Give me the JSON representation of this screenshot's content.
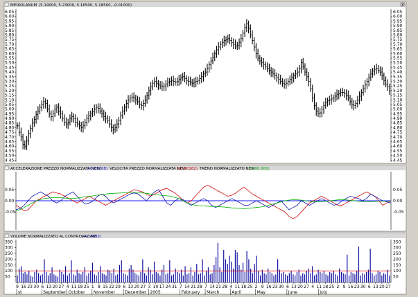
{
  "colors": {
    "price_bar": "#000000",
    "acc_line": "#d00000",
    "vel_line": "#1010b0",
    "trend_line": "#00b000",
    "zero_line": "#1a1aff",
    "volume_bar": "#1010a0",
    "volume_ref": "#e00000",
    "pane_bg": "#ffffff",
    "header_bg": "#d8d8d8"
  },
  "price_pane": {
    "title": "MEDIOLANUM",
    "ohlc": "(5.19000, 5.23000, 5.16500, 5.18500, -0.01000)",
    "close_icon": "close-icon"
  },
  "osc_pane": {
    "acc_label": "ACCELERAZIONE PREZZO NORMALIZZATA NEW",
    "acc_value": "(-0.01308)",
    "vel_label": "VELOCITA PREZZO NORMALIZZATA NEW",
    "vel_value": "(-0.00162)",
    "trend_label": "TREND NORMALIZZATO NEW",
    "trend_value": "(0.00.000)"
  },
  "vol_pane": {
    "label": "VOLUME NORMALIZZATO AL CONTROVALORE",
    "value": "(+7.4592)"
  },
  "x_axis": {
    "days": [
      "9",
      "16",
      "23",
      "30",
      "6",
      "13",
      "20",
      "27",
      "4",
      "11",
      "18",
      "25",
      "1",
      "8",
      "15",
      "22",
      "29",
      "6",
      "13",
      "20",
      "27",
      "3",
      "10",
      "17",
      "24",
      "31",
      "7",
      "14",
      "21",
      "28",
      "7",
      "14",
      "21",
      "28",
      "4",
      "11",
      "18",
      "25",
      "2",
      "9",
      "16",
      "23",
      "30",
      "6",
      "13",
      "20",
      "27",
      "4",
      "11",
      "18",
      "25",
      "2",
      "9",
      "16",
      "23",
      "30",
      "6",
      "13",
      "20",
      "27"
    ],
    "months": [
      "st",
      "September",
      "October",
      "November",
      "December",
      "2005",
      "February",
      "March",
      "April",
      "May",
      "June",
      "July"
    ]
  },
  "chart_data": [
    {
      "type": "ohlc",
      "title": "MEDIOLANUM",
      "ylim": [
        4.43,
        6.08
      ],
      "yticks": [
        "6.05",
        "6.00",
        "5.95",
        "5.90",
        "5.85",
        "5.80",
        "5.75",
        "5.70",
        "5.65",
        "5.60",
        "5.55",
        "5.50",
        "5.45",
        "5.40",
        "5.35",
        "5.30",
        "5.25",
        "5.20",
        "5.15",
        "5.10",
        "5.05",
        "5.00",
        "4.95",
        "4.90",
        "4.85",
        "4.80",
        "4.75",
        "4.70",
        "4.65",
        "4.60",
        "4.55",
        "4.50",
        "4.45"
      ],
      "close": [
        4.82,
        4.75,
        4.7,
        4.62,
        4.6,
        4.66,
        4.74,
        4.79,
        4.85,
        4.89,
        4.94,
        4.98,
        5.02,
        5.05,
        5.08,
        5.06,
        5.0,
        4.95,
        4.92,
        4.95,
        5.0,
        5.02,
        4.98,
        4.95,
        4.9,
        4.86,
        4.84,
        4.86,
        4.9,
        4.92,
        4.9,
        4.86,
        4.84,
        4.82,
        4.8,
        4.82,
        4.86,
        4.9,
        4.93,
        4.95,
        4.97,
        5.0,
        5.02,
        5.01,
        4.98,
        4.95,
        4.92,
        4.9,
        4.88,
        4.84,
        4.8,
        4.78,
        4.8,
        4.84,
        4.88,
        4.93,
        4.98,
        5.02,
        5.06,
        5.1,
        5.12,
        5.13,
        5.12,
        5.1,
        5.08,
        5.05,
        5.04,
        5.06,
        5.1,
        5.15,
        5.2,
        5.24,
        5.28,
        5.3,
        5.28,
        5.26,
        5.25,
        5.24,
        5.25,
        5.27,
        5.29,
        5.3,
        5.31,
        5.3,
        5.29,
        5.3,
        5.32,
        5.34,
        5.35,
        5.33,
        5.31,
        5.3,
        5.29,
        5.28,
        5.29,
        5.3,
        5.31,
        5.33,
        5.35,
        5.38,
        5.4,
        5.44,
        5.48,
        5.52,
        5.56,
        5.6,
        5.64,
        5.67,
        5.7,
        5.72,
        5.74,
        5.75,
        5.76,
        5.74,
        5.72,
        5.7,
        5.68,
        5.69,
        5.72,
        5.76,
        5.82,
        5.88,
        5.92,
        5.87,
        5.8,
        5.74,
        5.67,
        5.6,
        5.55,
        5.52,
        5.5,
        5.48,
        5.46,
        5.44,
        5.42,
        5.4,
        5.38,
        5.36,
        5.34,
        5.32,
        5.3,
        5.28,
        5.27,
        5.28,
        5.3,
        5.32,
        5.34,
        5.36,
        5.38,
        5.4,
        5.44,
        5.5,
        5.46,
        5.4,
        5.35,
        5.3,
        5.22,
        5.12,
        5.04,
        4.98,
        4.95,
        4.96,
        5.0,
        5.04,
        5.07,
        5.09,
        5.1,
        5.11,
        5.12,
        5.14,
        5.16,
        5.17,
        5.18,
        5.18,
        5.17,
        5.15,
        5.12,
        5.08,
        5.05,
        5.04,
        5.06,
        5.1,
        5.14,
        5.18,
        5.22,
        5.26,
        5.3,
        5.34,
        5.38,
        5.41,
        5.43,
        5.44,
        5.42,
        5.4,
        5.36,
        5.31,
        5.27,
        5.24,
        5.2
      ]
    },
    {
      "type": "line",
      "ylim": [
        -0.13,
        0.13
      ],
      "yticks": [
        "0.05",
        "0.00",
        "-0.05"
      ],
      "series": [
        {
          "name": "ACCELERAZIONE PREZZO NORMALIZZATA NEW",
          "values": [
            -0.02,
            -0.03,
            -0.045,
            -0.04,
            -0.02,
            0.0,
            0.01,
            0.02,
            0.03,
            0.04,
            0.035,
            0.03,
            0.02,
            0.01,
            0.0,
            -0.01,
            0.0,
            0.01,
            0.02,
            0.01,
            0.0,
            -0.01,
            -0.02,
            -0.01,
            0.0,
            0.01,
            0.02,
            0.03,
            0.04,
            0.05,
            0.045,
            0.04,
            0.03,
            0.02,
            0.03,
            0.04,
            0.05,
            0.055,
            0.045,
            0.035,
            0.02,
            0.0,
            -0.01,
            0.0,
            0.02,
            0.04,
            0.06,
            0.07,
            0.06,
            0.05,
            0.04,
            0.03,
            0.02,
            0.025,
            0.035,
            0.05,
            0.06,
            0.045,
            0.03,
            0.02,
            0.01,
            0.0,
            -0.01,
            -0.02,
            -0.03,
            -0.04,
            -0.05,
            -0.07,
            -0.08,
            -0.07,
            -0.05,
            -0.03,
            -0.01,
            0.0,
            0.01,
            0.02,
            0.01,
            0.0,
            -0.01,
            -0.02,
            -0.02,
            -0.01,
            0.0,
            0.01,
            0.02,
            0.03,
            0.04,
            0.03,
            0.02,
            0.0,
            -0.02,
            -0.01,
            0.0
          ]
        },
        {
          "name": "VELOCITA PREZZO NORMALIZZATA NEW",
          "values": [
            -0.04,
            -0.035,
            -0.02,
            0.0,
            0.02,
            0.03,
            0.04,
            0.03,
            0.02,
            0.0,
            -0.01,
            0.0,
            0.02,
            0.03,
            0.04,
            0.02,
            0.0,
            -0.015,
            -0.01,
            0.0,
            0.02,
            0.03,
            0.02,
            0.0,
            -0.01,
            0.0,
            0.01,
            0.02,
            0.03,
            0.035,
            0.03,
            0.015,
            0.0,
            0.02,
            0.04,
            0.05,
            0.02,
            -0.01,
            -0.02,
            0.0,
            0.01,
            0.005,
            -0.01,
            -0.02,
            -0.01,
            0.0,
            0.01,
            0.0,
            -0.02,
            -0.03,
            -0.02,
            -0.01,
            0.0,
            0.01,
            0.0,
            -0.01,
            -0.02,
            -0.02,
            -0.01,
            0.0,
            -0.01,
            -0.02,
            -0.03,
            -0.02,
            -0.01,
            0.0,
            -0.02,
            -0.04,
            -0.03,
            -0.02,
            0.0,
            -0.01,
            -0.02,
            -0.01,
            0.0,
            0.01,
            0.0,
            -0.01,
            -0.02,
            -0.015,
            0.0,
            0.01,
            0.02,
            0.015,
            0.01,
            0.0,
            0.01,
            0.03,
            0.02,
            0.01,
            0.0,
            -0.005,
            -0.01
          ]
        },
        {
          "name": "TREND NORMALIZZATO NEW",
          "values": [
            -0.045,
            -0.04,
            -0.03,
            -0.02,
            -0.01,
            0.0,
            0.005,
            0.01,
            0.012,
            0.014,
            0.015,
            0.014,
            0.012,
            0.01,
            0.01,
            0.012,
            0.015,
            0.018,
            0.02,
            0.022,
            0.025,
            0.028,
            0.03,
            0.032,
            0.033,
            0.034,
            0.035,
            0.036,
            0.037,
            0.037,
            0.036,
            0.035,
            0.033,
            0.03,
            0.028,
            0.026,
            0.024,
            0.022,
            0.02,
            0.015,
            0.01,
            0.0,
            -0.01,
            -0.015,
            -0.02,
            -0.022,
            -0.023,
            -0.024,
            -0.025,
            -0.026,
            -0.027,
            -0.028,
            -0.03,
            -0.032,
            -0.033,
            -0.034,
            -0.035,
            -0.034,
            -0.032,
            -0.03,
            -0.028,
            -0.025,
            -0.02,
            -0.015,
            -0.01,
            -0.005,
            0.0,
            0.003,
            0.005,
            0.004,
            0.003,
            0.0,
            -0.002,
            -0.004,
            -0.005,
            -0.004,
            -0.002,
            0.0,
            0.002,
            0.004,
            0.005,
            0.004,
            0.002,
            0.0,
            -0.002,
            -0.004,
            -0.005,
            -0.004,
            -0.003,
            -0.002,
            -0.002,
            -0.002,
            -0.002
          ]
        }
      ]
    },
    {
      "type": "bar",
      "title": "VOLUME NORMALIZZATO AL CONTROVALORE",
      "ylim": [
        0,
        370
      ],
      "yticks": [
        "350",
        "300",
        "250",
        "200",
        "150",
        "100",
        "50"
      ],
      "reference": 100,
      "values": [
        60,
        120,
        140,
        80,
        90,
        70,
        100,
        60,
        50,
        90,
        110,
        80,
        60,
        70,
        200,
        90,
        60,
        80,
        130,
        70,
        60,
        50,
        110,
        90,
        70,
        140,
        60,
        80,
        190,
        70,
        60,
        110,
        80,
        70,
        90,
        130,
        60,
        80,
        100,
        170,
        70,
        60,
        90,
        140,
        80,
        70,
        60,
        110,
        100,
        80,
        120,
        60,
        70,
        150,
        190,
        80,
        70,
        60,
        120,
        150,
        110,
        80,
        70,
        60,
        90,
        200,
        80,
        60,
        130,
        110,
        70,
        180,
        90,
        80,
        60,
        110,
        150,
        70,
        80,
        190,
        60,
        70,
        120,
        90,
        80,
        110,
        60,
        140,
        70,
        80,
        130,
        60,
        90,
        160,
        70,
        80,
        200,
        60,
        100,
        130,
        70,
        80,
        150,
        220,
        340,
        130,
        90,
        280,
        200,
        160,
        230,
        180,
        120,
        280,
        260,
        150,
        110,
        170,
        90,
        270,
        200,
        120,
        80,
        160,
        230,
        100,
        60,
        110,
        80,
        70,
        120,
        90,
        80,
        60,
        70,
        200,
        110,
        80,
        90,
        70,
        60,
        80,
        100,
        70,
        60,
        90,
        110,
        60,
        80,
        70,
        100,
        120,
        80,
        140,
        60,
        70,
        110,
        90,
        80,
        100,
        70,
        60,
        90,
        80,
        100,
        70,
        60,
        120,
        90,
        80,
        70,
        240,
        60,
        90,
        80,
        70,
        100,
        310,
        60,
        80,
        70,
        90,
        110,
        290,
        80,
        60,
        70,
        100,
        90,
        60,
        80,
        70,
        110,
        60
      ]
    }
  ]
}
